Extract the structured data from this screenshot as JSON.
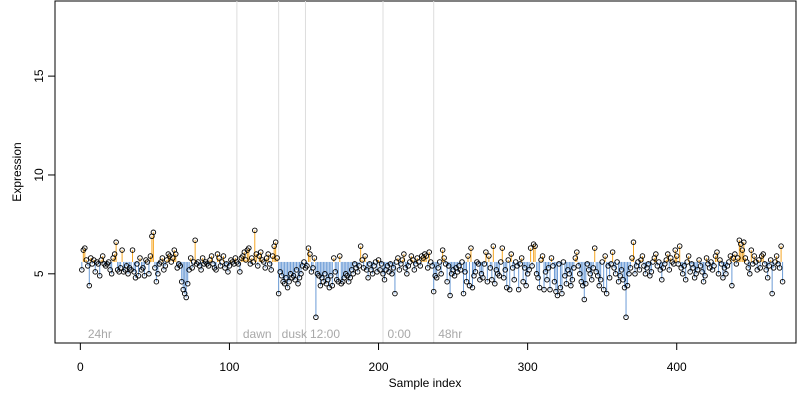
{
  "chart_data": {
    "type": "scatter",
    "title": "",
    "xlabel": "Sample index",
    "ylabel": "Expression",
    "xlim": [
      -17,
      480
    ],
    "ylim": [
      1.5,
      18.8
    ],
    "xticks": [
      0,
      100,
      200,
      300,
      400
    ],
    "yticks": [
      5,
      10,
      15
    ],
    "baseline": 5.6,
    "colors": {
      "above": "#f5a623",
      "below": "#6b9bd6",
      "separator": "#dddddd",
      "point_stroke": "#000000",
      "region_text": "#a8a8a8"
    },
    "separators": [
      105,
      133,
      151,
      203,
      237
    ],
    "regions": [
      {
        "label": "24hr",
        "x": 3
      },
      {
        "label": "dawn",
        "x": 107
      },
      {
        "label": "dusk",
        "x": 133
      },
      {
        "label": "12:00",
        "x": 152
      },
      {
        "label": "0:00",
        "x": 204
      },
      {
        "label": "48hr",
        "x": 238
      }
    ],
    "segments": [
      {
        "start": 1,
        "values": [
          5.2,
          6.2,
          6.3,
          5.7,
          5.4,
          4.4,
          5.8,
          5.5,
          5.7,
          5.1,
          5.6,
          5.5,
          4.9,
          5.7,
          5.9,
          5.5,
          5.4,
          5.5,
          5.6,
          5.2,
          5.0,
          5.8,
          6.0,
          6.6,
          5.2,
          5.1,
          5.3,
          6.2,
          5.1,
          5.2,
          5.4,
          5.0,
          5.3,
          5.2,
          6.2,
          5.1,
          4.8,
          5.5,
          4.9,
          5.8,
          5.2,
          5.3,
          4.9,
          5.7,
          5.6,
          5.0,
          5.9,
          6.9,
          7.1,
          5.3,
          4.6,
          5.0,
          5.5,
          5.6,
          5.8,
          5.2,
          5.4,
          5.7,
          6.0,
          5.9,
          5.6,
          5.8,
          6.2,
          6.0,
          5.3,
          5.5,
          5.4,
          4.6,
          4.2,
          4.0,
          3.8,
          4.5,
          5.2,
          5.8,
          5.3,
          5.6,
          6.7,
          5.5,
          5.6,
          5.4,
          5.2,
          5.8,
          5.5,
          5.6,
          5.5,
          5.4,
          5.7,
          5.9,
          5.5,
          5.3,
          5.2,
          6.0,
          5.8,
          5.4,
          5.6,
          5.9,
          5.3,
          5.5,
          5.1,
          5.4,
          5.7,
          5.6,
          5.5,
          5.8,
          5.6
        ]
      },
      {
        "start": 106,
        "values": [
          5.5,
          5.1,
          5.8,
          5.9,
          6.1,
          5.7,
          6.2,
          6.3,
          5.5,
          5.8,
          5.6,
          7.2,
          6.0,
          5.4,
          5.9,
          6.1,
          5.7,
          5.6,
          5.3,
          5.8,
          6.0,
          5.5,
          5.2,
          5.9,
          6.4,
          6.6,
          5.8
        ]
      },
      {
        "start": 133,
        "values": [
          4.0,
          5.1,
          4.9,
          4.6,
          4.5,
          4.8,
          4.3,
          4.6,
          5.0,
          4.8,
          4.9,
          4.7,
          5.2,
          4.5,
          4.8,
          5.0,
          5.4,
          5.6
        ]
      },
      {
        "start": 151,
        "values": [
          5.3,
          5.4,
          6.3,
          6.0,
          5.1,
          5.3,
          5.8,
          2.8,
          5.0,
          4.9,
          4.4,
          4.8,
          4.6,
          5.0,
          4.5,
          4.7,
          4.3,
          4.9,
          4.4,
          5.8,
          5.1,
          4.7,
          4.6,
          5.9,
          4.5,
          4.6,
          4.8,
          5.0,
          4.9,
          4.6,
          4.8,
          5.2,
          5.0,
          5.5,
          5.3,
          5.1,
          5.4,
          6.4,
          5.7,
          5.3,
          5.9,
          5.2,
          4.8,
          5.5,
          5.2,
          5.0,
          5.4,
          5.6,
          5.1,
          5.7,
          5.2,
          5.5
        ]
      },
      {
        "start": 203,
        "values": [
          5.0,
          4.7,
          5.2,
          5.4,
          5.1,
          5.5,
          5.0,
          5.3,
          4.0,
          5.6,
          5.8,
          5.2,
          5.5,
          5.7,
          6.0,
          5.3,
          5.0,
          5.4,
          5.6,
          5.9,
          5.7,
          5.2,
          5.5,
          5.8,
          5.6,
          5.4,
          5.9,
          5.8,
          6.0,
          5.9,
          5.3,
          6.1,
          5.6,
          5.4
        ]
      },
      {
        "start": 237,
        "values": [
          4.1,
          4.9,
          4.8,
          5.3,
          5.6,
          5.0,
          6.2,
          5.8,
          5.5,
          4.6,
          5.4,
          3.9,
          5.0,
          5.2,
          4.9,
          5.3,
          5.1,
          5.4,
          5.2,
          5.6,
          4.0,
          5.1,
          4.6,
          5.9,
          4.4,
          6.3,
          4.3,
          4.9,
          5.1,
          5.6,
          5.5,
          4.7,
          5.0,
          4.8,
          5.5,
          6.1,
          4.6,
          5.9,
          5.3,
          4.7,
          6.4,
          4.5,
          5.2,
          5.0,
          4.9,
          5.6,
          6.3,
          4.8,
          5.2,
          4.3,
          5.7,
          4.2,
          6.0,
          5.3,
          4.7,
          5.6,
          5.4,
          4.2,
          5.5,
          5.8,
          4.6,
          5.3,
          4.4,
          5.0,
          5.2,
          6.3,
          5.4,
          6.5,
          6.4,
          5.0,
          4.8,
          4.3,
          5.7,
          5.9,
          4.2,
          5.1,
          4.7,
          5.3,
          4.2,
          5.8,
          5.4,
          4.6,
          4.1,
          3.9,
          5.5,
          4.3,
          4.0,
          5.6,
          4.9,
          4.5,
          5.2,
          5.0,
          4.4,
          4.7,
          5.3,
          5.8,
          6.1,
          5.4,
          5.0,
          4.6,
          4.4,
          3.7,
          4.5,
          5.5,
          5.2,
          5.0,
          4.7,
          5.3,
          6.3,
          5.1,
          4.9,
          4.4,
          4.7,
          5.6,
          4.2,
          5.9,
          4.0,
          5.4,
          4.8,
          5.5,
          6.1,
          5.3,
          5.0,
          5.6,
          4.6,
          4.9,
          5.2,
          4.7,
          4.3,
          2.8,
          4.4,
          5.0,
          5.3,
          5.8,
          6.6,
          5.0,
          5.4,
          5.6,
          5.2,
          5.7,
          5.9,
          5.4,
          5.0,
          5.3,
          5.5,
          4.9,
          5.1,
          5.6,
          5.8,
          6.0,
          5.4,
          5.6,
          5.2,
          4.7,
          5.3,
          5.5,
          5.7,
          6.0,
          5.2,
          5.8,
          5.6,
          5.5,
          6.2,
          5.9,
          5.5,
          6.4,
          5.3,
          5.0,
          5.4,
          4.7,
          5.6,
          5.9,
          5.1,
          5.5,
          5.3,
          4.8,
          5.0,
          5.2,
          5.7,
          5.4,
          5.1,
          4.6,
          4.9,
          5.8,
          5.5,
          5.3,
          5.6,
          5.2,
          5.4,
          5.9,
          6.1,
          5.0,
          5.7,
          5.5,
          4.8,
          5.3,
          5.0,
          5.4,
          5.6,
          5.9,
          4.4,
          5.8,
          6.0,
          5.5,
          5.8,
          6.7,
          6.5,
          6.2,
          6.6,
          5.8,
          5.6,
          5.3,
          5.0,
          6.2,
          5.5,
          5.9,
          5.6,
          5.2,
          5.7,
          5.3,
          5.9,
          6.0,
          5.5,
          5.2,
          4.8,
          5.4,
          5.7,
          4.0,
          5.3,
          5.6,
          5.9,
          5.5,
          5.3,
          6.4,
          4.6
        ]
      }
    ]
  }
}
